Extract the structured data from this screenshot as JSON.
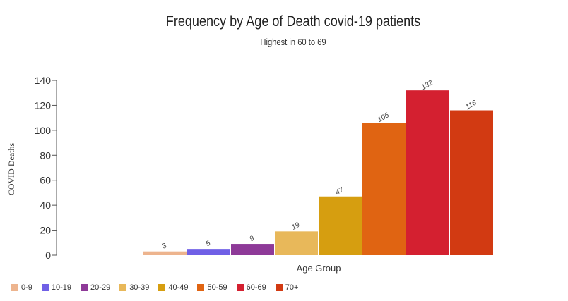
{
  "chart_data": {
    "type": "bar",
    "title": "Frequency by Age of Death covid-19 patients",
    "subtitle": "Highest in 60 to 69",
    "xlabel": "Age Group",
    "ylabel": "COVID Deaths",
    "ylim": [
      0,
      140
    ],
    "yticks": [
      "0",
      "20",
      "40",
      "60",
      "80",
      "100",
      "120",
      "140"
    ],
    "categories": [
      "0-9",
      "10-19",
      "20-29",
      "30-39",
      "40-49",
      "50-59",
      "60-69",
      "70+"
    ],
    "values": [
      3,
      5,
      9,
      19,
      47,
      106,
      132,
      116
    ],
    "colors": [
      "#EDB48E",
      "#7060E6",
      "#8E3A98",
      "#E8B85A",
      "#D69E10",
      "#E06412",
      "#D42030",
      "#D23A12"
    ],
    "data_labels": [
      "3",
      "5",
      "9",
      "19",
      "47",
      "106",
      "132",
      "116"
    ],
    "legend_position": "bottom-left",
    "grid": false
  }
}
